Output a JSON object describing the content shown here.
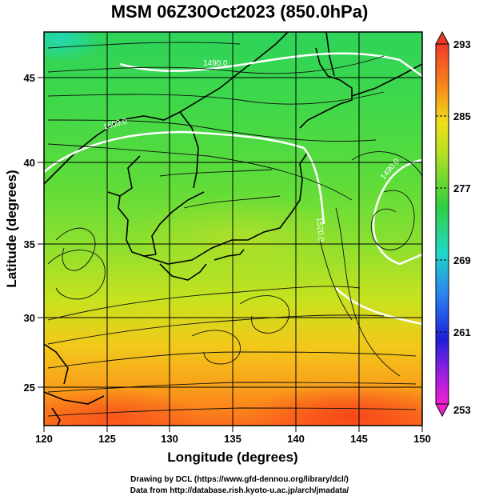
{
  "title": "MSM 06Z30Oct2023 (850.0hPa)",
  "chart_data": {
    "type": "heatmap",
    "title": "MSM 06Z30Oct2023 (850.0hPa)",
    "xlabel": "Longitude (degrees)",
    "ylabel": "Latitude  (degrees)",
    "xlim": [
      120,
      150
    ],
    "ylim": [
      22.4,
      47.6
    ],
    "x_ticks": [
      "120",
      "125",
      "130",
      "135",
      "140",
      "145",
      "150"
    ],
    "y_ticks": [
      "25",
      "30",
      "35",
      "40",
      "45"
    ],
    "grid": true,
    "colorbar": {
      "min": 253,
      "max": 293,
      "ticks": [
        "293",
        "285",
        "277",
        "269",
        "261",
        "253"
      ]
    },
    "contour_labels": [
      {
        "text": "1490.0",
        "lon": 134.0,
        "lat": 46.0
      },
      {
        "text": "1500.0",
        "lon": 126.0,
        "lat": 41.2
      },
      {
        "text": "1490.0",
        "lon": 147.8,
        "lat": 39.8
      },
      {
        "text": "1520.0",
        "lon": 138.0,
        "lat": 36.5
      }
    ]
  },
  "footer": {
    "line1": "Drawing by DCL (https://www.gfd-dennou.org/library/dcl/)",
    "line2": "Data from http://database.rish.kyoto-u.ac.jp/arch/jmadata/"
  }
}
